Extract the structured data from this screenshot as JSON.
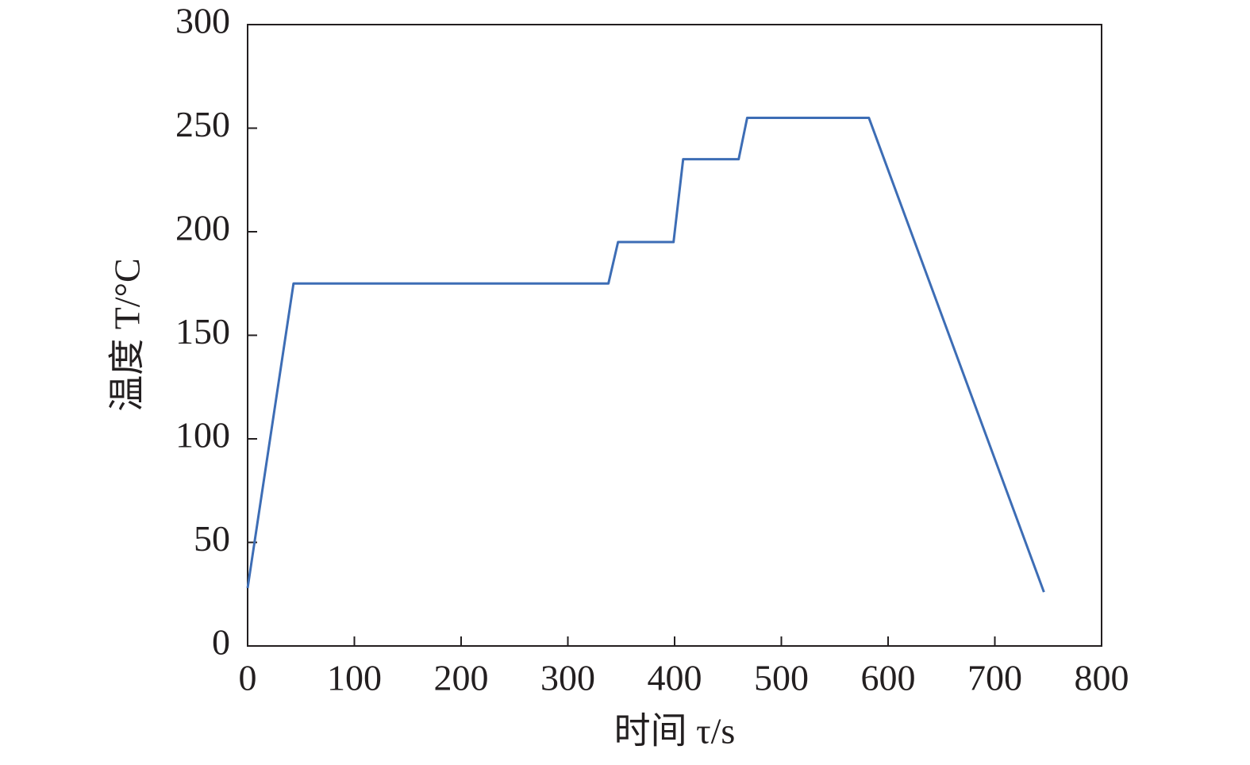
{
  "chart_data": {
    "type": "line",
    "xlabel": "时间 τ/s",
    "ylabel": "温度 T/°C",
    "x": [
      0,
      43,
      338,
      347,
      399,
      408,
      460,
      468,
      582,
      746
    ],
    "values": [
      28,
      175,
      175,
      195,
      195,
      235,
      235,
      255,
      255,
      26
    ],
    "color": "#3d6db5",
    "xlim": [
      0,
      800
    ],
    "xticks": [
      0,
      100,
      200,
      300,
      400,
      500,
      600,
      700,
      800
    ],
    "ylim": [
      0,
      300
    ],
    "yticks": [
      0,
      50,
      100,
      150,
      200,
      250,
      300
    ],
    "grid": false
  }
}
